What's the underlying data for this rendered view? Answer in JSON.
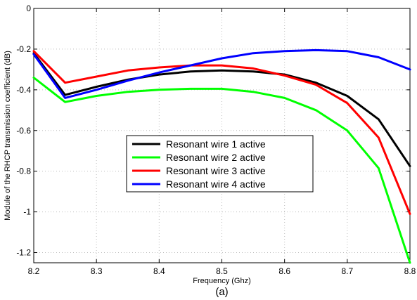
{
  "chart_data": {
    "type": "line",
    "caption": "(a)",
    "xlabel": "Frequency (Ghz)",
    "ylabel": "Module of the RHCP transmission coefficient (dB)",
    "xlim": [
      8.2,
      8.8
    ],
    "ylim": [
      -1.25,
      0
    ],
    "xticks": [
      8.2,
      8.3,
      8.4,
      8.5,
      8.6,
      8.7,
      8.8
    ],
    "xtick_labels": [
      "8.2",
      "8.3",
      "8.4",
      "8.5",
      "8.6",
      "8.7",
      "8.8"
    ],
    "yticks": [
      0,
      -0.2,
      -0.4,
      -0.6,
      -0.8,
      -1,
      -1.2
    ],
    "ytick_labels": [
      "0",
      "-0.2",
      "-0.4",
      "-0.6",
      "-0.8",
      "-1",
      "-1.2"
    ],
    "grid": true,
    "legend_position": "center-left",
    "x": [
      8.2,
      8.25,
      8.3,
      8.35,
      8.4,
      8.45,
      8.5,
      8.55,
      8.6,
      8.65,
      8.7,
      8.75,
      8.8
    ],
    "series": [
      {
        "name": "Resonant wire 1 active",
        "color": "#000000",
        "values": [
          -0.22,
          -0.425,
          -0.385,
          -0.35,
          -0.325,
          -0.31,
          -0.305,
          -0.31,
          -0.325,
          -0.365,
          -0.43,
          -0.545,
          -0.775
        ]
      },
      {
        "name": "Resonant wire 2 active",
        "color": "#00ff00",
        "values": [
          -0.34,
          -0.46,
          -0.43,
          -0.41,
          -0.4,
          -0.395,
          -0.395,
          -0.41,
          -0.44,
          -0.5,
          -0.6,
          -0.785,
          -1.25
        ]
      },
      {
        "name": "Resonant wire 3 active",
        "color": "#ff0000",
        "values": [
          -0.21,
          -0.365,
          -0.335,
          -0.305,
          -0.29,
          -0.28,
          -0.28,
          -0.295,
          -0.33,
          -0.375,
          -0.465,
          -0.635,
          -1.01
        ]
      },
      {
        "name": "Resonant wire 4 active",
        "color": "#0000ff",
        "values": [
          -0.225,
          -0.44,
          -0.4,
          -0.355,
          -0.315,
          -0.28,
          -0.245,
          -0.22,
          -0.21,
          -0.205,
          -0.21,
          -0.24,
          -0.3
        ]
      }
    ]
  }
}
